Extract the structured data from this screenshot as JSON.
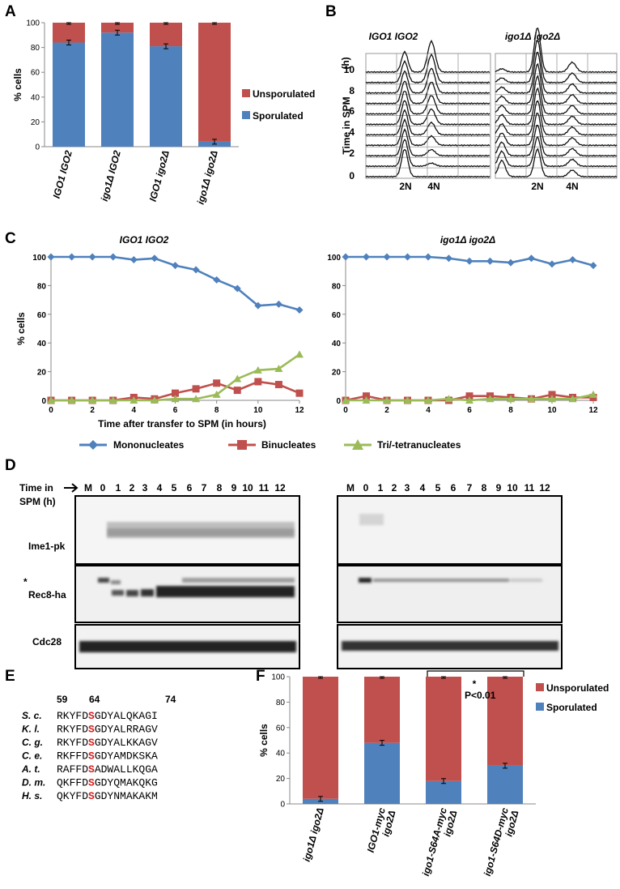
{
  "colors": {
    "blue": "#4f81bd",
    "red": "#c0504d",
    "green": "#9bbb59"
  },
  "panels": {
    "a": "A",
    "b": "B",
    "c": "C",
    "d": "D",
    "e": "E",
    "f": "F"
  },
  "legend_ab": {
    "unsporulated": "Unsporulated",
    "sporulated": "Sporulated"
  },
  "panel_b": {
    "title_left": "IGO1 IGO2",
    "title_right": "igo1Δ igo2Δ",
    "ylabel": "Time in SPM",
    "unit": "(h)",
    "yticks": [
      "10",
      "8",
      "6",
      "4",
      "2",
      "0"
    ],
    "peak_labels": [
      "2N",
      "4N"
    ]
  },
  "panel_c": {
    "xlabel": "Time after transfer to SPM (in hours)",
    "legend": [
      "Mononucleates",
      "Binucleates",
      "Tri/-tetranucleates"
    ]
  },
  "panel_d": {
    "time_header": "Time in",
    "time_header2": "SPM (h)",
    "lanes": [
      "M",
      "0",
      "1",
      "2",
      "3",
      "4",
      "5",
      "6",
      "7",
      "8",
      "9",
      "10",
      "11",
      "12"
    ],
    "blots": [
      "Ime1-pk",
      "Rec8-ha",
      "Cdc28"
    ],
    "asterisk": "*"
  },
  "panel_e": {
    "positions": [
      "59",
      "64",
      "74"
    ],
    "rows": [
      {
        "species": "S. c.",
        "pre": "RKYFD",
        "site": "S",
        "post": "GDYALQKAGI"
      },
      {
        "species": "K. l.",
        "pre": "RKYFD",
        "site": "S",
        "post": "GDYALRRAGV"
      },
      {
        "species": "C. g.",
        "pre": "RKYFD",
        "site": "S",
        "post": "GDYALKKAGV"
      },
      {
        "species": "C. e.",
        "pre": "RKFFD",
        "site": "S",
        "post": "GDYAMDKSKA"
      },
      {
        "species": "A. t.",
        "pre": "RAFFD",
        "site": "S",
        "post": "ADWALLKQGA"
      },
      {
        "species": "D. m.",
        "pre": "QKFFD",
        "site": "S",
        "post": "GDYQMAKQKG"
      },
      {
        "species": "H. s.",
        "pre": "QKYFD",
        "site": "S",
        "post": "GDYNMAKAKM"
      }
    ]
  },
  "panel_f_extra": {
    "sig_star": "*",
    "sig_p": "P<0.01"
  },
  "chart_data": [
    {
      "id": "A",
      "type": "bar",
      "ylabel": "% cells",
      "ylim": [
        0,
        100
      ],
      "yticks": [
        0,
        20,
        40,
        60,
        80,
        100
      ],
      "categories": [
        "IGO1 IGO2",
        "igo1Δ IGO2",
        "IGO1 igo2Δ",
        "igo1Δ igo2Δ"
      ],
      "series": [
        {
          "name": "Sporulated",
          "values": [
            84,
            92,
            81,
            4
          ]
        },
        {
          "name": "Unsporulated",
          "values": [
            16,
            8,
            19,
            96
          ]
        }
      ],
      "legend": "right",
      "grid": false
    },
    {
      "id": "C-left",
      "type": "line",
      "title": "IGO1 IGO2",
      "ylabel": "% cells",
      "ylim": [
        0,
        100
      ],
      "yticks": [
        0,
        20,
        40,
        60,
        80,
        100
      ],
      "xticks": [
        0,
        2,
        4,
        6,
        8,
        10,
        12
      ],
      "x": [
        0,
        1,
        2,
        3,
        4,
        5,
        6,
        7,
        8,
        9,
        10,
        11,
        12
      ],
      "series": [
        {
          "name": "Mononucleates",
          "values": [
            100,
            100,
            100,
            100,
            98,
            99,
            94,
            91,
            84,
            78,
            66,
            67,
            63
          ]
        },
        {
          "name": "Binucleates",
          "values": [
            0,
            0,
            0,
            0,
            2,
            1,
            5,
            8,
            12,
            7,
            13,
            11,
            5
          ]
        },
        {
          "name": "Tri/-tetranucleates",
          "values": [
            0,
            0,
            0,
            0,
            0,
            0,
            1,
            1,
            4,
            15,
            21,
            22,
            32
          ]
        }
      ]
    },
    {
      "id": "C-right",
      "type": "line",
      "title": "igo1Δ igo2Δ",
      "ylim": [
        0,
        100
      ],
      "yticks": [
        0,
        20,
        40,
        60,
        80,
        100
      ],
      "xticks": [
        0,
        2,
        4,
        6,
        8,
        10,
        12
      ],
      "x": [
        0,
        1,
        2,
        3,
        4,
        5,
        6,
        7,
        8,
        9,
        10,
        11,
        12
      ],
      "series": [
        {
          "name": "Mononucleates",
          "values": [
            100,
            100,
            100,
            100,
            100,
            99,
            97,
            97,
            96,
            99,
            95,
            98,
            94
          ]
        },
        {
          "name": "Binucleates",
          "values": [
            0,
            3,
            0,
            0,
            0,
            0,
            3,
            3,
            2,
            1,
            4,
            2,
            2
          ]
        },
        {
          "name": "Tri/-tetranucleates",
          "values": [
            0,
            0,
            0,
            0,
            0,
            1,
            0,
            1,
            1,
            1,
            1,
            1,
            4
          ]
        }
      ]
    },
    {
      "id": "F",
      "type": "bar",
      "ylabel": "% cells",
      "ylim": [
        0,
        100
      ],
      "yticks": [
        0,
        20,
        40,
        60,
        80,
        100
      ],
      "categories": [
        "igo1Δ igo2Δ",
        "IGO1-myc igo2Δ",
        "igo1-S64A-myc igo2Δ",
        "igo1-S64D-myc igo2Δ"
      ],
      "category_lines": [
        [
          "igo1Δ igo2Δ"
        ],
        [
          "IGO1-myc",
          "igo2Δ"
        ],
        [
          "igo1-S64A-myc",
          "igo2Δ"
        ],
        [
          "igo1-S64D-myc",
          "igo2Δ"
        ]
      ],
      "series": [
        {
          "name": "Sporulated",
          "values": [
            4,
            48,
            18,
            30
          ]
        },
        {
          "name": "Unsporulated",
          "values": [
            96,
            52,
            82,
            70
          ]
        }
      ],
      "legend": "right",
      "grid": false
    }
  ]
}
